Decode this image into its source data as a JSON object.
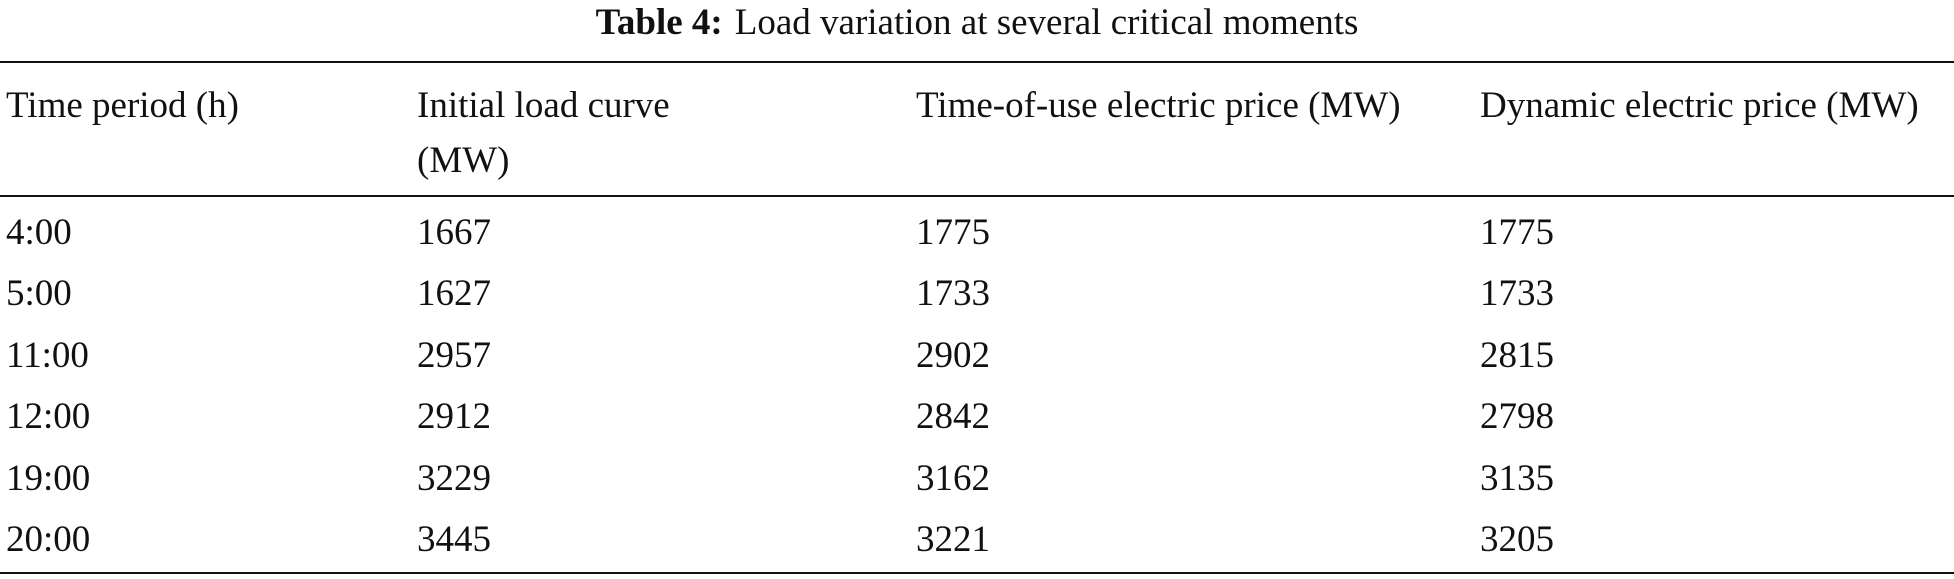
{
  "table": {
    "caption": {
      "label": "Table 4:",
      "text": "Load variation at several critical moments"
    },
    "columns": [
      "Time period (h)",
      "Initial load curve (MW)",
      "Time-of-use electric price (MW)",
      "Dynamic electric price (MW)"
    ],
    "rows": [
      [
        "4:00",
        1667,
        1775,
        1775
      ],
      [
        "5:00",
        1627,
        1733,
        1733
      ],
      [
        "11:00",
        2957,
        2902,
        2815
      ],
      [
        "12:00",
        2912,
        2842,
        2798
      ],
      [
        "19:00",
        3229,
        3162,
        3135
      ],
      [
        "20:00",
        3445,
        3221,
        3205
      ]
    ]
  }
}
